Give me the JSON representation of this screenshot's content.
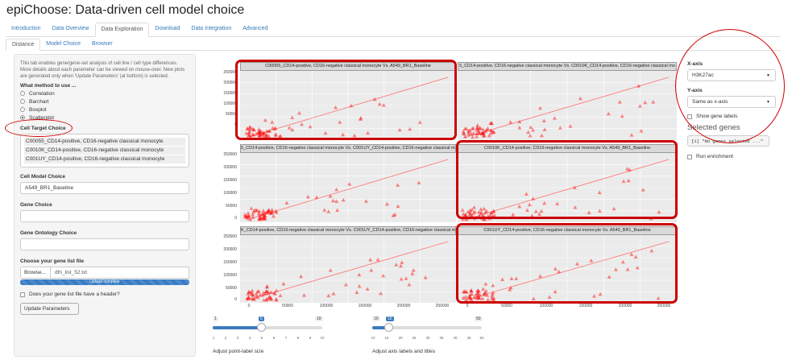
{
  "app_title": "epiChoose: Data-driven cell model choice",
  "nav_tabs": [
    "Introduction",
    "Data Overview",
    "Data Exploration",
    "Download",
    "Data Integration",
    "Advanced"
  ],
  "sub_tabs": [
    "Distance",
    "Model Choice",
    "Browser"
  ],
  "sidebar": {
    "description": "This tab enables gene/gene-set analysis of cell line / cell type differences. More details about each parameter can be viewed on mouse-over. New plots are generated only when 'Update Parameters' (at bottom) is selected.",
    "method_label": "What method to use ...",
    "methods": [
      "Correlation",
      "Barchart",
      "Boxplot",
      "Scatterplot"
    ],
    "selected_method": "Scatterplot",
    "cell_target_label": "Cell Target Choice",
    "cell_targets": [
      "C00055_CD14-positive, CD16-negative classical monocyte",
      "C0010K_CD14-positive, CD16-negative classical monocyte",
      "C001UY_CD14-positive, CD16-negative classical monocyte"
    ],
    "cell_model_label": "Cell Model Choice",
    "cell_model_value": "A549_BR1_Baseline",
    "gene_choice_label": "Gene Choice",
    "gene_choice_value": "",
    "go_label": "Gene Ontology Choice",
    "go_value": "",
    "file_label": "Choose your gene list file",
    "browse_label": "Browse...",
    "file_name": "dfn_list_52.txt",
    "upload_status": "Upload complete",
    "header_checkbox_label": "Does your gene list file have a header?",
    "update_button": "Update Parameters"
  },
  "right_panel": {
    "xaxis_label": "X-axis",
    "xaxis_value": "H3K27ac",
    "yaxis_label": "Y-axis",
    "yaxis_value": "Same as x-axis",
    "show_labels": "Show gene labels",
    "selected_genes_title": "Selected genes",
    "selected_genes_output": "[1] \"No genes selected ...\"",
    "run_enrichment": "Run enrichment"
  },
  "plot": {
    "panels": [
      {
        "strip": "C00055_CD14-positive, CD16-negative classical monocyte Vs. A549_BR1_Baseline"
      },
      {
        "strip": "5_CD14-positive, CD16-negative classical monocyte Vs. C0010K_CD14-positive, CD16-negative classical mo"
      },
      {
        "strip": "5_CD14-positive, CD16-negative classical monocyte Vs. C001UY_CD14-positive, CD16-negative classical mo"
      },
      {
        "strip": "C0010K_CD14-positive, CD16-negative classical monocyte Vs. A549_BR1_Baseline"
      },
      {
        "strip": "K_CD14-positive, CD16-negative classical monocyte Vs. C001UY_CD14-positive, CD16-negative classical mo"
      },
      {
        "strip": "C001UY_CD14-positive, CD16-negative classical monocyte Vs. A549_BR1_Baseline"
      }
    ],
    "y_ticks": [
      "250000",
      "200000",
      "150000",
      "100000",
      "50000",
      "0"
    ],
    "x_ticks": [
      "0",
      "50000",
      "100000",
      "150000",
      "200000",
      "250000"
    ],
    "point_color": "#ff0000"
  },
  "sliders": [
    {
      "min": "1",
      "max": "10",
      "value": "5",
      "fraction": 0.444,
      "ticks": [
        "1",
        "2",
        "3",
        "4",
        "5",
        "6",
        "7",
        "8",
        "9",
        "10"
      ],
      "caption": "Adjust point-label size"
    },
    {
      "min": "10",
      "max": "50",
      "value": "15",
      "fraction": 0.125,
      "ticks": [
        "10",
        "15",
        "20",
        "25",
        "30",
        "35",
        "40",
        "45",
        "50"
      ],
      "caption": "Adjust axis labels and titles"
    }
  ]
}
